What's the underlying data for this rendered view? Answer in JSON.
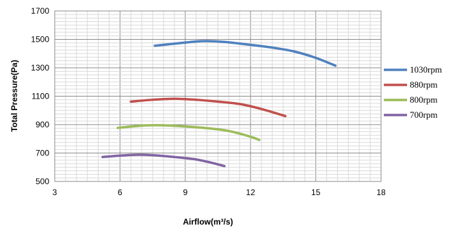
{
  "chart_data": {
    "type": "line",
    "title": "",
    "xlabel": "Airflow(m³/s)",
    "ylabel": "Total Pressure(Pa)",
    "xlim": [
      3,
      18
    ],
    "ylim": [
      500,
      1700
    ],
    "xticks": [
      3,
      6,
      9,
      12,
      15,
      18
    ],
    "yticks": [
      500,
      700,
      900,
      1100,
      1300,
      1500,
      1700
    ],
    "grid": true,
    "legend_position": "right",
    "series": [
      {
        "name": "1030rpm",
        "color": "#4F81BD",
        "x": [
          7.6,
          8.5,
          9.5,
          10.0,
          10.8,
          11.8,
          13.0,
          14.0,
          15.0,
          15.9
        ],
        "y": [
          1455,
          1470,
          1485,
          1488,
          1482,
          1465,
          1442,
          1415,
          1370,
          1315
        ]
      },
      {
        "name": "880rpm",
        "color": "#C0504D",
        "x": [
          6.5,
          7.5,
          8.5,
          9.5,
          10.5,
          11.5,
          12.5,
          13.6
        ],
        "y": [
          1062,
          1075,
          1082,
          1075,
          1062,
          1045,
          1010,
          960
        ]
      },
      {
        "name": "800rpm",
        "color": "#9BBB59",
        "x": [
          5.9,
          7.0,
          8.0,
          9.0,
          10.0,
          11.0,
          12.0,
          12.4
        ],
        "y": [
          877,
          893,
          895,
          887,
          875,
          855,
          815,
          792
        ]
      },
      {
        "name": "700rpm",
        "color": "#8064A2",
        "x": [
          5.2,
          6.0,
          6.8,
          7.5,
          8.5,
          9.5,
          10.3,
          10.8
        ],
        "y": [
          672,
          682,
          688,
          685,
          672,
          655,
          628,
          608
        ]
      }
    ]
  }
}
